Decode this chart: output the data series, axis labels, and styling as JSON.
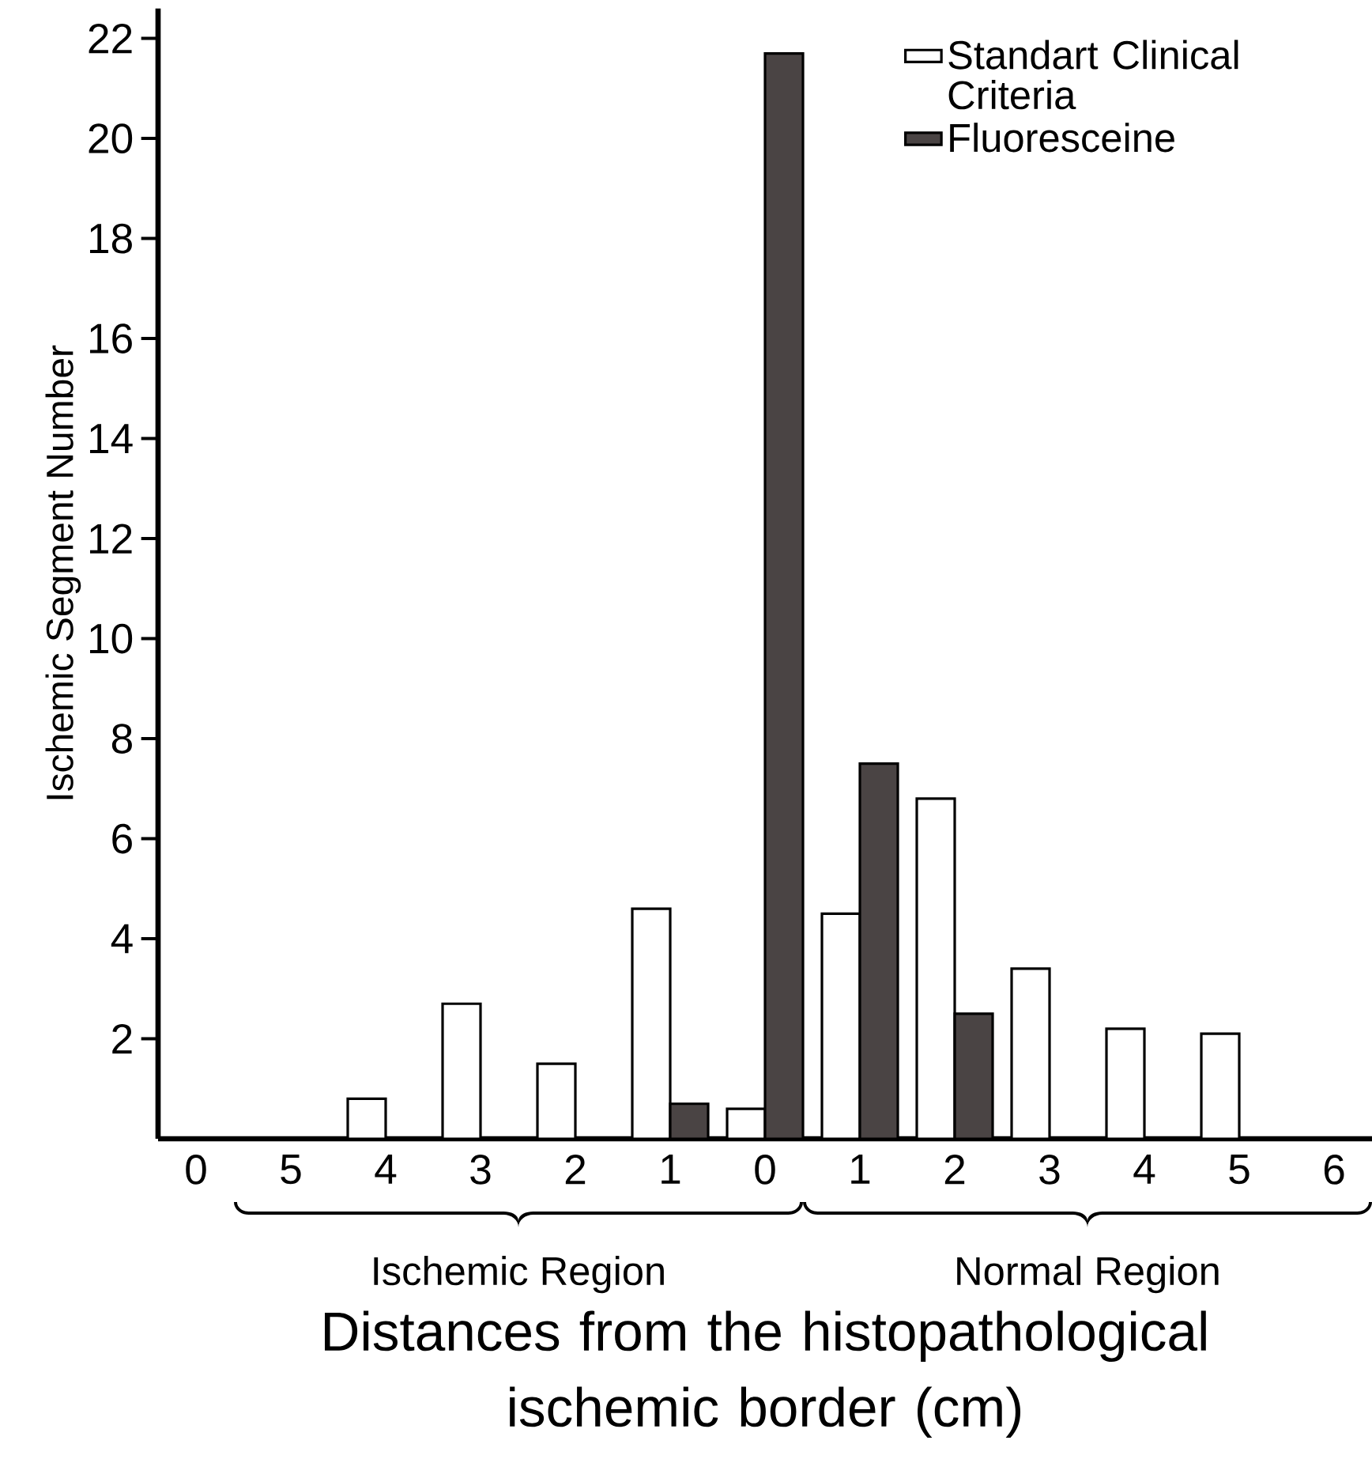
{
  "chart_data": {
    "type": "bar",
    "xlabel": "Distances from the histopathological ischemic border (cm)",
    "ylabel": "Ischemic Segment Number",
    "categories": [
      "0",
      "5",
      "4",
      "3",
      "2",
      "1",
      "0",
      "1",
      "2",
      "3",
      "4",
      "5",
      "6"
    ],
    "series": [
      {
        "name": "Standart Clinical Criteria",
        "color": "#ffffff",
        "values": [
          null,
          null,
          0.8,
          2.7,
          1.5,
          4.6,
          0.6,
          4.5,
          6.8,
          3.4,
          2.2,
          2.1,
          null
        ]
      },
      {
        "name": "Fluoresceine",
        "color": "#4a4444",
        "values": [
          null,
          null,
          null,
          null,
          null,
          0.7,
          21.7,
          7.5,
          2.5,
          null,
          null,
          null,
          null
        ]
      }
    ],
    "ylim": [
      0,
      22.6
    ],
    "yticks": [
      2,
      4,
      6,
      8,
      10,
      12,
      14,
      16,
      18,
      20,
      22
    ],
    "legend": "top right",
    "annotations": [
      "Ischemic Region",
      "Normal Region"
    ]
  }
}
